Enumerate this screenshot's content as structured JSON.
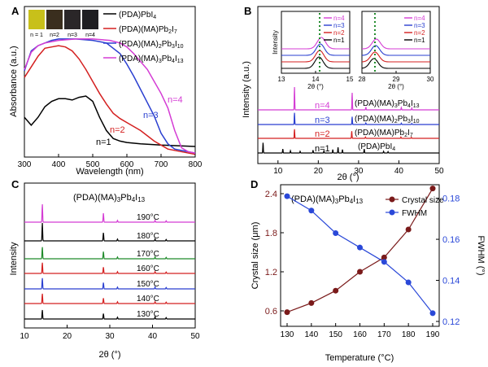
{
  "panels": {
    "A": {
      "letter": "A",
      "xlabel": "Wavelength (nm)",
      "ylabel": "Absorbance (a.u.)",
      "x_ticks": [
        "300",
        "400",
        "500",
        "600",
        "700",
        "800"
      ],
      "legend": [
        "(PDA)PbI",
        "(PDA)(MA)Pb",
        "(PDA)(MA)",
        "(PDA)(MA)"
      ],
      "photo_labels": [
        "n = 1",
        "n=2",
        "n=3",
        "n=4"
      ],
      "curve_labels": [
        "n=1",
        "n=2",
        "n=3",
        "n=4"
      ]
    },
    "B": {
      "letter": "B",
      "xlabel": "2θ (°)",
      "ylabel": "Intensity (a.u.)",
      "x_ticks": [
        "10",
        "20",
        "30",
        "40",
        "50"
      ],
      "n_labels": [
        "n=1",
        "n=2",
        "n=3",
        "n=4"
      ],
      "inset_ylabel": "Intensity",
      "inset1_ticks": [
        "13",
        "14",
        "15"
      ],
      "inset2_ticks": [
        "28",
        "29",
        "30"
      ],
      "inset_xlabel": "2θ (°)"
    },
    "C": {
      "letter": "C",
      "title": "(PDA)(MA)",
      "xlabel": "2θ (°)",
      "ylabel": "Intensity",
      "x_ticks": [
        "10",
        "20",
        "30",
        "40",
        "50"
      ],
      "temps": [
        "130°C",
        "140°C",
        "150°C",
        "160°C",
        "170°C",
        "180°C",
        "190°C"
      ]
    },
    "D": {
      "letter": "D",
      "title": "(PDA)(MA)",
      "xlabel": "Temperature (°C)",
      "ylabel_left": "Crystal  size (μm)",
      "ylabel_right": "FWHM (°)",
      "x_ticks": [
        "130",
        "140",
        "150",
        "160",
        "170",
        "180",
        "190"
      ],
      "yl_ticks": [
        "0.6",
        "1.2",
        "1.8",
        "2.4"
      ],
      "yr_ticks": [
        "0.12",
        "0.14",
        "0.16",
        "0.18"
      ],
      "legend": [
        "Crystal size",
        "FWHM"
      ]
    }
  },
  "colors": {
    "n1": "#000000",
    "n2": "#d42020",
    "n3": "#2a3fd0",
    "n4": "#d43cd4",
    "green": "#1f8a2a",
    "crystal": "#7a1a1a",
    "fwhm": "#2a48d8",
    "photo": [
      "#c8c01a",
      "#3a2e1e",
      "#2a2628",
      "#1e1e22"
    ]
  },
  "chart_data": [
    {
      "type": "line",
      "panel": "A",
      "xlim": [
        300,
        800
      ],
      "series": [
        {
          "name": "(PDA)PbI4",
          "label": "n=1",
          "x": [
            300,
            320,
            340,
            360,
            380,
            400,
            420,
            440,
            460,
            480,
            500,
            520,
            540,
            560,
            580,
            600,
            640,
            700,
            800
          ],
          "y": [
            0.3,
            0.24,
            0.3,
            0.38,
            0.42,
            0.44,
            0.44,
            0.43,
            0.45,
            0.46,
            0.42,
            0.3,
            0.2,
            0.14,
            0.12,
            0.11,
            0.1,
            0.09,
            0.08
          ]
        },
        {
          "name": "(PDA)(MA)Pb2I7",
          "label": "n=2",
          "x": [
            300,
            320,
            340,
            360,
            380,
            400,
            420,
            440,
            460,
            480,
            500,
            520,
            540,
            560,
            580,
            600,
            640,
            680,
            720,
            800
          ],
          "y": [
            0.6,
            0.68,
            0.76,
            0.82,
            0.83,
            0.84,
            0.83,
            0.8,
            0.74,
            0.66,
            0.57,
            0.48,
            0.4,
            0.33,
            0.29,
            0.26,
            0.2,
            0.12,
            0.06,
            0.02
          ]
        },
        {
          "name": "(PDA)(MA)2Pb3I10",
          "label": "n=3",
          "x": [
            300,
            320,
            340,
            360,
            380,
            400,
            450,
            500,
            540,
            580,
            600,
            620,
            640,
            660,
            680,
            700,
            720,
            740,
            800
          ],
          "y": [
            0.65,
            0.8,
            0.84,
            0.86,
            0.88,
            0.89,
            0.89,
            0.88,
            0.86,
            0.78,
            0.7,
            0.61,
            0.51,
            0.41,
            0.31,
            0.18,
            0.1,
            0.06,
            0.03
          ]
        },
        {
          "name": "(PDA)(MA)3Pb4I13",
          "label": "n=4",
          "x": [
            300,
            320,
            340,
            360,
            400,
            450,
            500,
            550,
            580,
            600,
            620,
            640,
            660,
            680,
            700,
            720,
            740,
            760,
            780,
            800
          ],
          "y": [
            0.66,
            0.79,
            0.84,
            0.86,
            0.88,
            0.89,
            0.89,
            0.88,
            0.86,
            0.83,
            0.78,
            0.72,
            0.66,
            0.57,
            0.48,
            0.37,
            0.2,
            0.07,
            0.04,
            0.03
          ]
        }
      ]
    },
    {
      "type": "line",
      "panel": "B",
      "xlim": [
        5,
        50
      ],
      "series": [
        {
          "name": "(PDA)PbI4",
          "label": "n=1",
          "peaks": [
            [
              6.3,
              0.9
            ],
            [
              11.2,
              0.35
            ],
            [
              13.1,
              0.2
            ],
            [
              15.5,
              0.15
            ],
            [
              18.7,
              0.25
            ],
            [
              21.4,
              0.2
            ],
            [
              23.6,
              0.3
            ],
            [
              24.9,
              0.5
            ],
            [
              26.0,
              0.3
            ],
            [
              31.4,
              0.35
            ],
            [
              36.2,
              0.15
            ],
            [
              37.3,
              0.12
            ]
          ]
        },
        {
          "name": "(PDA)(MA)Pb2I7",
          "label": "n=2",
          "peaks": [
            [
              14.1,
              0.7
            ],
            [
              28.3,
              0.55
            ],
            [
              31.7,
              0.1
            ],
            [
              40.5,
              0.1
            ],
            [
              43.1,
              0.08
            ]
          ]
        },
        {
          "name": "(PDA)(MA)2Pb3I10",
          "label": "n=3",
          "peaks": [
            [
              14.1,
              0.9
            ],
            [
              28.4,
              0.6
            ],
            [
              31.8,
              0.12
            ],
            [
              40.6,
              0.1
            ],
            [
              43.2,
              0.08
            ]
          ]
        },
        {
          "name": "(PDA)(MA)3Pb4I13",
          "label": "n=4",
          "peaks": [
            [
              14.1,
              1.0
            ],
            [
              28.4,
              0.75
            ],
            [
              31.8,
              0.12
            ],
            [
              40.6,
              0.1
            ],
            [
              43.2,
              0.08
            ]
          ]
        }
      ],
      "insets": [
        {
          "xlim": [
            13,
            15
          ],
          "peaks": [
            14.1,
            14.12,
            14.14,
            14.17
          ]
        },
        {
          "xlim": [
            28,
            30
          ],
          "peaks": [
            28.35,
            28.38,
            28.4,
            28.42
          ]
        }
      ]
    },
    {
      "type": "line",
      "panel": "C",
      "xlim": [
        10,
        50
      ],
      "series": [
        {
          "name": "130°C",
          "peaks": [
            [
              14.2,
              0.5
            ],
            [
              28.5,
              0.3
            ],
            [
              31.8,
              0.1
            ],
            [
              40.6,
              0.12
            ],
            [
              43.2,
              0.08
            ]
          ]
        },
        {
          "name": "140°C",
          "peaks": [
            [
              14.2,
              0.55
            ],
            [
              28.5,
              0.3
            ],
            [
              31.8,
              0.1
            ],
            [
              40.6,
              0.1
            ],
            [
              43.2,
              0.08
            ]
          ]
        },
        {
          "name": "150°C",
          "peaks": [
            [
              14.2,
              0.6
            ],
            [
              28.5,
              0.35
            ],
            [
              31.8,
              0.1
            ],
            [
              40.6,
              0.1
            ],
            [
              43.2,
              0.08
            ]
          ]
        },
        {
          "name": "160°C",
          "peaks": [
            [
              14.2,
              0.6
            ],
            [
              28.5,
              0.35
            ],
            [
              31.8,
              0.1
            ],
            [
              40.6,
              0.1
            ],
            [
              43.2,
              0.08
            ]
          ]
        },
        {
          "name": "170°C",
          "peaks": [
            [
              14.2,
              0.65
            ],
            [
              28.5,
              0.4
            ],
            [
              31.8,
              0.1
            ],
            [
              40.6,
              0.1
            ],
            [
              43.2,
              0.08
            ]
          ]
        },
        {
          "name": "180°C",
          "peaks": [
            [
              14.2,
              1.0
            ],
            [
              28.5,
              0.45
            ],
            [
              31.8,
              0.1
            ],
            [
              40.6,
              0.1
            ],
            [
              43.2,
              0.08
            ]
          ]
        },
        {
          "name": "190°C",
          "peaks": [
            [
              14.2,
              1.0
            ],
            [
              28.5,
              0.5
            ],
            [
              31.8,
              0.1
            ],
            [
              40.6,
              0.1
            ],
            [
              43.2,
              0.08
            ]
          ]
        }
      ]
    },
    {
      "type": "line",
      "panel": "D",
      "x": [
        130,
        140,
        150,
        160,
        170,
        180,
        190
      ],
      "series": [
        {
          "name": "Crystal size",
          "axis": "left",
          "values": [
            0.58,
            0.72,
            0.91,
            1.2,
            1.42,
            1.85,
            2.48
          ]
        },
        {
          "name": "FWHM",
          "axis": "right",
          "values": [
            0.181,
            0.174,
            0.163,
            0.156,
            0.149,
            0.139,
            0.124
          ]
        }
      ],
      "ylim_left": [
        0.4,
        2.5
      ],
      "ylim_right": [
        0.12,
        0.185
      ]
    }
  ]
}
